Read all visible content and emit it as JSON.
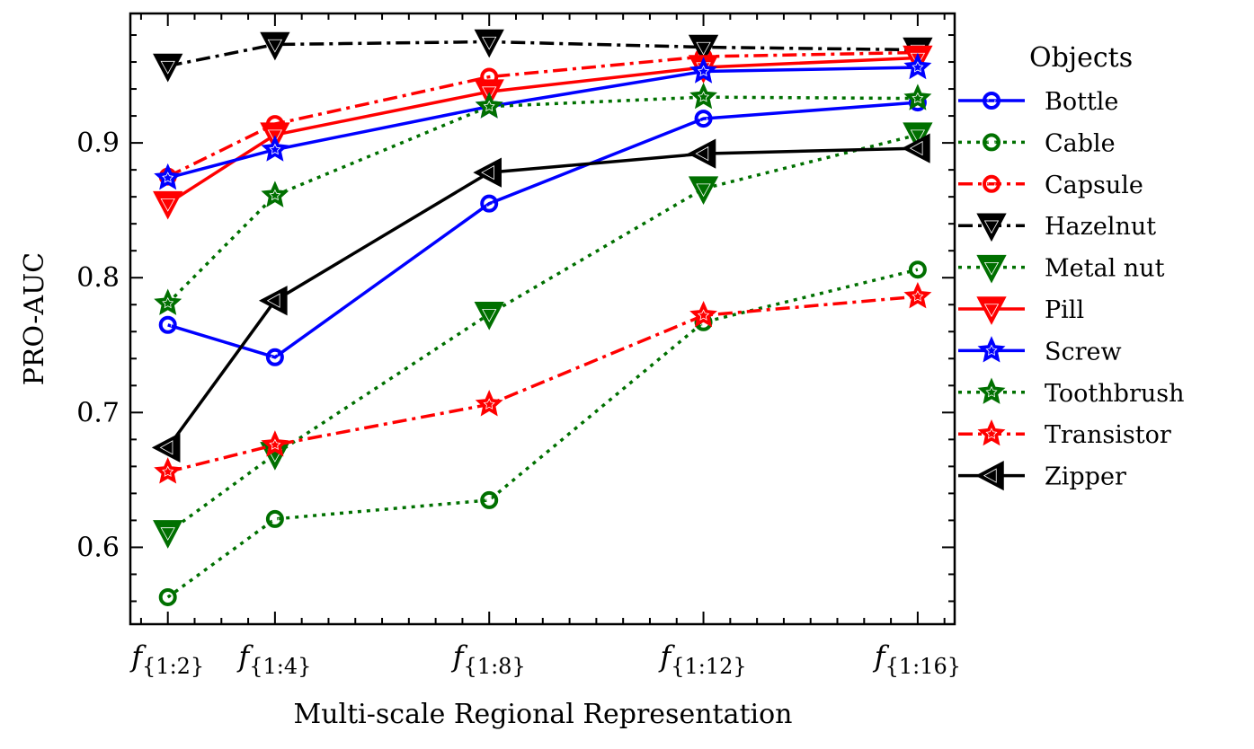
{
  "chart_data": {
    "type": "line",
    "xlabel": "Multi-scale Regional Representation",
    "ylabel": "PRO-AUC",
    "x": [
      2,
      4,
      8,
      12,
      16
    ],
    "xtick_labels": [
      {
        "base": "f",
        "sub": "{1:2}"
      },
      {
        "base": "f",
        "sub": "{1:4}"
      },
      {
        "base": "f",
        "sub": "{1:8}"
      },
      {
        "base": "f",
        "sub": "{1:12}"
      },
      {
        "base": "f",
        "sub": "{1:16}"
      }
    ],
    "yticks": [
      0.6,
      0.7,
      0.8,
      0.9
    ],
    "ytick_labels": [
      "0.6",
      "0.7",
      "0.8",
      "0.9"
    ],
    "xlim": [
      1.3,
      16.69
    ],
    "ylim": [
      0.543,
      0.996
    ],
    "grid": false,
    "legend": {
      "title": "Objects",
      "placement": "outside-right"
    },
    "series": [
      {
        "name": "Bottle",
        "color": "#0000ff",
        "linestyle": "solid",
        "marker": "circle",
        "values": [
          0.765,
          0.741,
          0.855,
          0.918,
          0.93
        ]
      },
      {
        "name": "Cable",
        "color": "#007000",
        "linestyle": "dotted",
        "marker": "circle",
        "values": [
          0.563,
          0.621,
          0.635,
          0.767,
          0.806
        ]
      },
      {
        "name": "Capsule",
        "color": "#ff0000",
        "linestyle": "dashdot",
        "marker": "circle",
        "values": [
          0.875,
          0.914,
          0.949,
          0.964,
          0.967
        ]
      },
      {
        "name": "Hazelnut",
        "color": "#000000",
        "linestyle": "dashdot",
        "marker": "triangle-down",
        "values": [
          0.957,
          0.973,
          0.975,
          0.971,
          0.969
        ]
      },
      {
        "name": "Metal nut",
        "color": "#007000",
        "linestyle": "dotted",
        "marker": "triangle-down",
        "values": [
          0.611,
          0.669,
          0.773,
          0.866,
          0.906
        ]
      },
      {
        "name": "Pill",
        "color": "#ff0000",
        "linestyle": "solid",
        "marker": "triangle-down",
        "values": [
          0.855,
          0.906,
          0.938,
          0.956,
          0.963
        ]
      },
      {
        "name": "Screw",
        "color": "#0000ff",
        "linestyle": "solid",
        "marker": "star",
        "values": [
          0.874,
          0.895,
          0.927,
          0.953,
          0.956
        ]
      },
      {
        "name": "Toothbrush",
        "color": "#007000",
        "linestyle": "dotted",
        "marker": "star",
        "values": [
          0.781,
          0.861,
          0.927,
          0.934,
          0.933
        ]
      },
      {
        "name": "Transistor",
        "color": "#ff0000",
        "linestyle": "dashdot",
        "marker": "star",
        "values": [
          0.656,
          0.676,
          0.706,
          0.772,
          0.786
        ]
      },
      {
        "name": "Zipper",
        "color": "#000000",
        "linestyle": "solid",
        "marker": "triangle-left",
        "values": [
          0.674,
          0.783,
          0.878,
          0.892,
          0.896
        ]
      }
    ]
  }
}
